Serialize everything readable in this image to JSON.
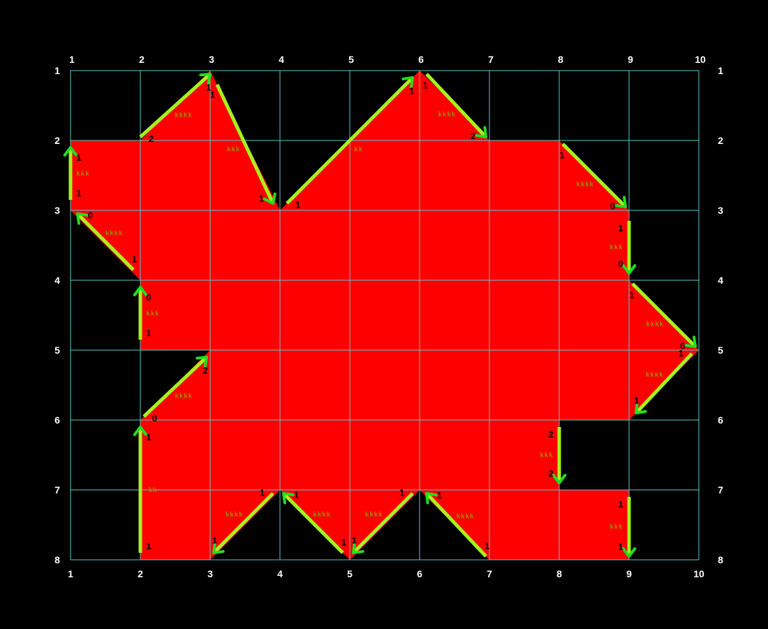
{
  "colors": {
    "background": "#000000",
    "shape_fill": "#ff0000",
    "grid_line": "#5cc8c8",
    "arrow": "#a6f21f",
    "arrow_head": "#22dd22",
    "end_label": "#000000",
    "mid_label": "#9a8a00",
    "axis_text": "#ffffff"
  },
  "grid": {
    "columns": [
      1,
      2,
      3,
      4,
      5,
      6,
      7,
      8,
      9,
      10
    ],
    "rows": [
      1,
      2,
      3,
      4,
      5,
      6,
      7,
      8
    ],
    "top_labels": [
      "1",
      "2",
      "3",
      "4",
      "5",
      "6",
      "7",
      "8",
      "9",
      "10"
    ],
    "bottom_labels": [
      "1",
      "2",
      "3",
      "4",
      "5",
      "6",
      "7",
      "8",
      "9",
      "10"
    ],
    "left_labels": [
      "1",
      "2",
      "3",
      "4",
      "5",
      "6",
      "7",
      "8"
    ],
    "right_labels": [
      "1",
      "2",
      "3",
      "4",
      "5",
      "6",
      "7",
      "8"
    ]
  },
  "shape": {
    "outline": [
      [
        1,
        2
      ],
      [
        2,
        2
      ],
      [
        3,
        1
      ],
      [
        4,
        3
      ],
      [
        6,
        1
      ],
      [
        7,
        2
      ],
      [
        8,
        2
      ],
      [
        9,
        3
      ],
      [
        9,
        4
      ],
      [
        10,
        5
      ],
      [
        9,
        6
      ],
      [
        8,
        6
      ],
      [
        8,
        7
      ],
      [
        9,
        7
      ],
      [
        9,
        8
      ],
      [
        7,
        8
      ],
      [
        6,
        7
      ],
      [
        5,
        8
      ],
      [
        4,
        7
      ],
      [
        3,
        8
      ],
      [
        2,
        8
      ],
      [
        2,
        6
      ],
      [
        3,
        5
      ],
      [
        2,
        5
      ],
      [
        2,
        4
      ],
      [
        1,
        3
      ]
    ]
  },
  "edges": [
    {
      "from": [
        1,
        2.85
      ],
      "to": [
        1,
        2.1
      ],
      "start_label": "1",
      "end_label": "1",
      "mid_label": "kkk"
    },
    {
      "from": [
        2,
        1.95
      ],
      "to": [
        3,
        1.05
      ],
      "start_label": "2",
      "end_label": "1",
      "mid_label": "kkkk"
    },
    {
      "from": [
        3.1,
        1.2
      ],
      "to": [
        3.9,
        2.9
      ],
      "start_label": "1",
      "end_label": "1",
      "mid_label": "kkk"
    },
    {
      "from": [
        4.1,
        2.9
      ],
      "to": [
        5.9,
        1.1
      ],
      "start_label": "1",
      "end_label": "1",
      "mid_label": "kk"
    },
    {
      "from": [
        6.1,
        1.05
      ],
      "to": [
        6.95,
        1.95
      ],
      "start_label": "1",
      "end_label": "2",
      "mid_label": "kkkk"
    },
    {
      "from": [
        8.05,
        2.05
      ],
      "to": [
        8.95,
        2.95
      ],
      "start_label": "1",
      "end_label": "0",
      "mid_label": "kkkk"
    },
    {
      "from": [
        9,
        3.15
      ],
      "to": [
        9,
        3.9
      ],
      "start_label": "1",
      "end_label": "0",
      "mid_label": "kkk"
    },
    {
      "from": [
        9.05,
        4.05
      ],
      "to": [
        9.95,
        4.95
      ],
      "start_label": "1",
      "end_label": "0",
      "mid_label": "kkkk"
    },
    {
      "from": [
        9.9,
        5.05
      ],
      "to": [
        9.1,
        5.9
      ],
      "start_label": "1",
      "end_label": "1",
      "mid_label": "kkkk"
    },
    {
      "from": [
        8,
        6.1
      ],
      "to": [
        8,
        6.9
      ],
      "start_label": "2",
      "end_label": "2",
      "mid_label": "kkk"
    },
    {
      "from": [
        9,
        7.1
      ],
      "to": [
        9,
        7.95
      ],
      "start_label": "1",
      "end_label": "1",
      "mid_label": "kkk"
    },
    {
      "from": [
        6.95,
        7.95
      ],
      "to": [
        6.1,
        7.05
      ],
      "start_label": "1",
      "end_label": "1",
      "mid_label": "kkkk"
    },
    {
      "from": [
        5.9,
        7.05
      ],
      "to": [
        5.05,
        7.9
      ],
      "start_label": "1",
      "end_label": "1",
      "mid_label": "kkkk"
    },
    {
      "from": [
        4.9,
        7.9
      ],
      "to": [
        4.05,
        7.05
      ],
      "start_label": "1",
      "end_label": "1",
      "mid_label": "kkkk"
    },
    {
      "from": [
        3.9,
        7.05
      ],
      "to": [
        3.05,
        7.9
      ],
      "start_label": "1",
      "end_label": "1",
      "mid_label": "kkkk"
    },
    {
      "from": [
        2,
        7.9
      ],
      "to": [
        2,
        6.1
      ],
      "start_label": "1",
      "end_label": "1",
      "mid_label": "kk"
    },
    {
      "from": [
        2.05,
        5.95
      ],
      "to": [
        2.95,
        5.1
      ],
      "start_label": "0",
      "end_label": "2",
      "mid_label": "kkkk"
    },
    {
      "from": [
        2,
        4.85
      ],
      "to": [
        2,
        4.1
      ],
      "start_label": "1",
      "end_label": "0",
      "mid_label": "kkk"
    },
    {
      "from": [
        1.9,
        3.85
      ],
      "to": [
        1.1,
        3.05
      ],
      "start_label": "1",
      "end_label": "0",
      "mid_label": "kkkk"
    }
  ]
}
